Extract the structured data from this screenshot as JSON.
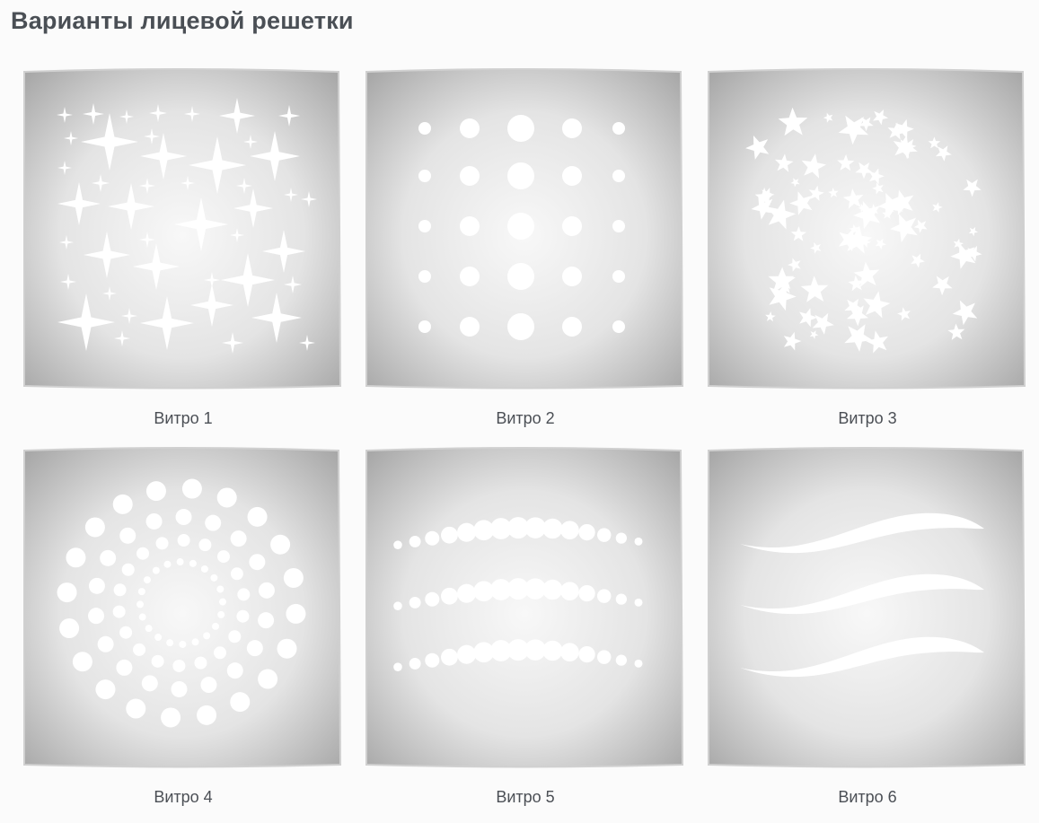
{
  "page": {
    "title": "Варианты лицевой решетки"
  },
  "variants": [
    {
      "caption": "Витро 1",
      "pattern": "sparkles"
    },
    {
      "caption": "Витро 2",
      "pattern": "dot-grid"
    },
    {
      "caption": "Витро 3",
      "pattern": "stars"
    },
    {
      "caption": "Витро 4",
      "pattern": "dot-rings"
    },
    {
      "caption": "Витро 5",
      "pattern": "dot-waves"
    },
    {
      "caption": "Витро 6",
      "pattern": "stripe-waves"
    }
  ],
  "colors": {
    "panel_center": "#f7f7f7",
    "panel_edge": "#a9a9a9",
    "pattern": "#ffffff"
  }
}
